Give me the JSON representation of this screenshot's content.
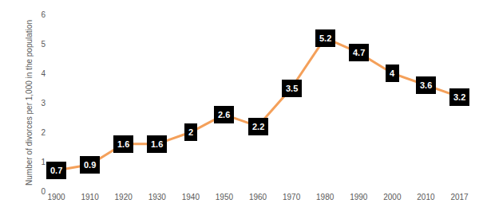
{
  "chart_data": {
    "type": "line",
    "y_label": "Number of divorces per 1,000 in the population",
    "categories": [
      "1900",
      "1910",
      "1920",
      "1930",
      "1940",
      "1950",
      "1960",
      "1970",
      "1980",
      "1990",
      "2000",
      "2010",
      "2017"
    ],
    "values": [
      0.7,
      0.9,
      1.6,
      1.6,
      2,
      2.6,
      2.2,
      3.5,
      5.2,
      4.7,
      4,
      3.6,
      3.2
    ],
    "color": "#f4a05a",
    "ylim": [
      0,
      6
    ],
    "yticks": [
      0,
      1,
      2,
      3,
      4,
      5,
      6
    ],
    "grid": false,
    "data_labels": true
  }
}
